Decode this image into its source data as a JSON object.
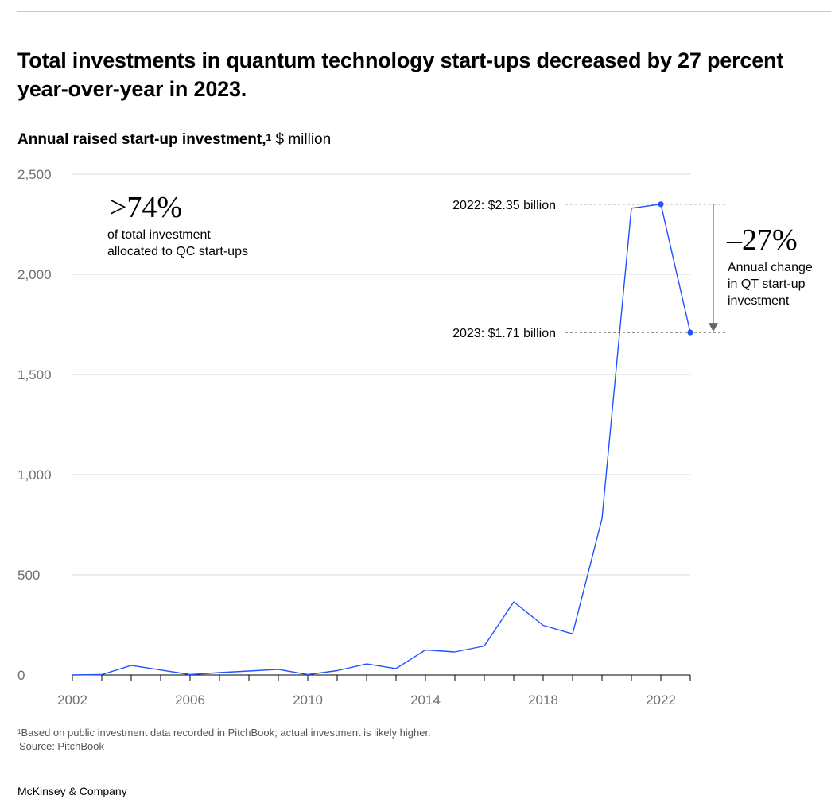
{
  "title": "Total investments in quantum technology start-ups decreased by 27 percent year-over-year in 2023.",
  "subtitle": {
    "bold": "Annual raised start-up investment,",
    "footnote_marker": "1",
    "unit": " $ million"
  },
  "chart_data": {
    "type": "line",
    "title": "Annual raised start-up investment, $ million",
    "xlabel": "",
    "ylabel": "$ million",
    "xlim": [
      2002,
      2023
    ],
    "ylim": [
      0,
      2500
    ],
    "y_ticks": [
      0,
      500,
      1000,
      1500,
      2000,
      2500
    ],
    "y_tick_labels": [
      "0",
      "500",
      "1,000",
      "1,500",
      "2,000",
      "2,500"
    ],
    "x_ticks": [
      2002,
      2006,
      2010,
      2014,
      2018,
      2022
    ],
    "x_tick_labels": [
      "2002",
      "2006",
      "2010",
      "2014",
      "2018",
      "2022"
    ],
    "grid": true,
    "series": [
      {
        "name": "Annual raised start-up investment",
        "color": "#2251ff",
        "x": [
          2002,
          2003,
          2004,
          2005,
          2006,
          2007,
          2008,
          2009,
          2010,
          2011,
          2012,
          2013,
          2014,
          2015,
          2016,
          2017,
          2018,
          2019,
          2020,
          2021,
          2022,
          2023
        ],
        "values": [
          0,
          2,
          48,
          25,
          2,
          12,
          20,
          28,
          2,
          22,
          55,
          32,
          125,
          115,
          145,
          365,
          248,
          205,
          780,
          2330,
          2350,
          1710
        ]
      }
    ],
    "highlighted_points": [
      {
        "x": 2022,
        "y": 2350,
        "label": "2022: $2.35 billion"
      },
      {
        "x": 2023,
        "y": 1710,
        "label": "2023: $1.71 billion"
      }
    ],
    "annotations": {
      "left": {
        "value": ">74%",
        "line1": "of total investment",
        "line2": "allocated to QC start-ups"
      },
      "right": {
        "value": "–27%",
        "line1": "Annual change",
        "line2": "in QT start-up",
        "line3": "investment"
      }
    }
  },
  "footnote": {
    "marker": "1",
    "text": "Based on public investment data recorded in PitchBook; actual investment is likely higher."
  },
  "source": "Source: PitchBook",
  "brand": "McKinsey & Company",
  "colors": {
    "series": "#2251ff",
    "grid": "#d9d9d9",
    "axis_text": "#707070",
    "annotation_arrow": "#666666"
  }
}
